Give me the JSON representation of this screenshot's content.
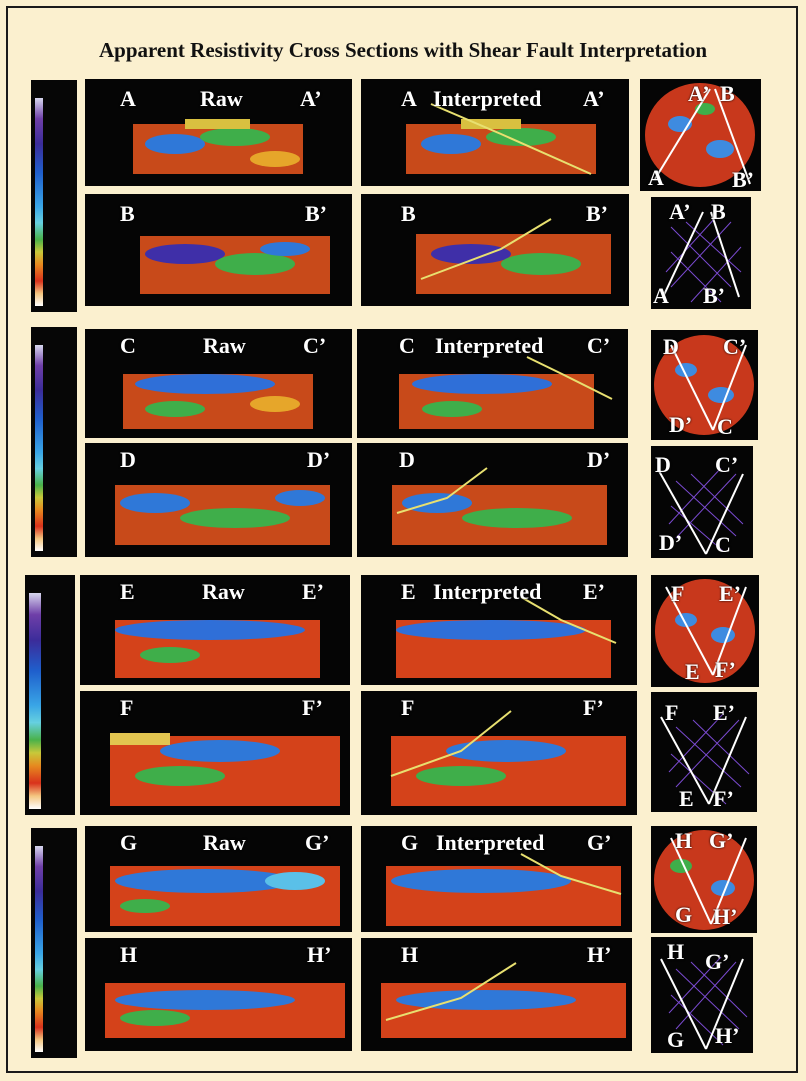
{
  "title": "Apparent Resistivity Cross Sections with Shear Fault Interpretation",
  "heading_raw": "Raw",
  "heading_interpreted": "Interpreted",
  "groups": [
    {
      "row1": {
        "start": "A",
        "end": "A’"
      },
      "row2": {
        "start": "B",
        "end": "B’"
      },
      "map1": {
        "tl": "A’",
        "tr": "B",
        "bl": "A",
        "br": "B’"
      },
      "map2": {
        "tl": "A’",
        "tr": "B",
        "bl": "A",
        "br": "B’"
      }
    },
    {
      "row1": {
        "start": "C",
        "end": "C’"
      },
      "row2": {
        "start": "D",
        "end": "D’"
      },
      "map1": {
        "tl": "D",
        "tr": "C’",
        "bl": "D’",
        "br": "C"
      },
      "map2": {
        "tl": "D",
        "tr": "C’",
        "bl": "D’",
        "br": "C"
      }
    },
    {
      "row1": {
        "start": "E",
        "end": "E’"
      },
      "row2": {
        "start": "F",
        "end": "F’"
      },
      "map1": {
        "tl": "F",
        "tr": "E’",
        "bl": "E",
        "br": "F’"
      },
      "map2": {
        "tl": "F",
        "tr": "E’",
        "bl": "E",
        "br": "F’"
      }
    },
    {
      "row1": {
        "start": "G",
        "end": "G’"
      },
      "row2": {
        "start": "H",
        "end": "H’"
      },
      "map1": {
        "tl": "H",
        "tr": "G’",
        "bl": "G",
        "br": "H’"
      },
      "map2": {
        "tl": "H",
        "tr": "G’",
        "bl": "G",
        "br": "H’"
      }
    }
  ]
}
